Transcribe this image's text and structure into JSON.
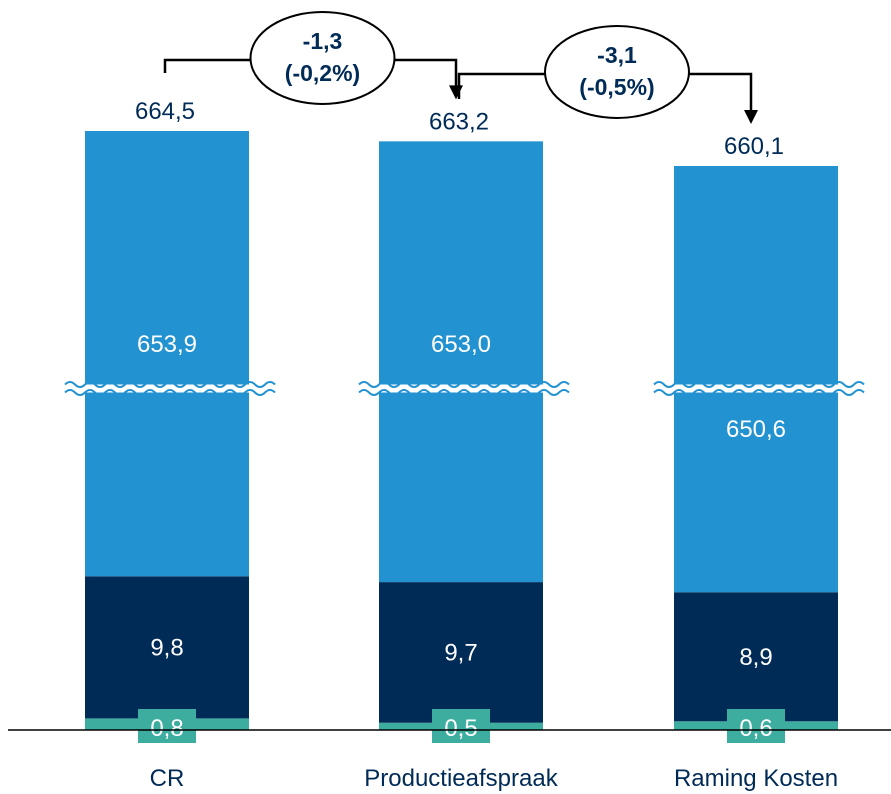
{
  "chart_data": {
    "type": "bar",
    "stacked": true,
    "axis_break": true,
    "categories": [
      "CR",
      "Productieafspraak",
      "Raming Kosten"
    ],
    "totals": [
      664.5,
      663.2,
      660.1
    ],
    "total_labels": [
      "664,5",
      "663,2",
      "660,1"
    ],
    "series": [
      {
        "values": [
          0.8,
          0.5,
          0.6
        ],
        "labels": [
          "0,8",
          "0,5",
          "0,6"
        ],
        "color": "#3dada0"
      },
      {
        "values": [
          9.8,
          9.7,
          8.9
        ],
        "labels": [
          "9,8",
          "9,7",
          "8,9"
        ],
        "color": "#002b57"
      },
      {
        "values": [
          653.9,
          653.0,
          650.6
        ],
        "labels": [
          "653,9",
          "653,0",
          "650,6"
        ],
        "color": "#2392d0"
      }
    ],
    "changes": [
      {
        "from": 0,
        "to": 1,
        "value": "-1,3",
        "percent": "(-0,2%)"
      },
      {
        "from": 1,
        "to": 2,
        "value": "-3,1",
        "percent": "(-0,5%)"
      }
    ]
  }
}
